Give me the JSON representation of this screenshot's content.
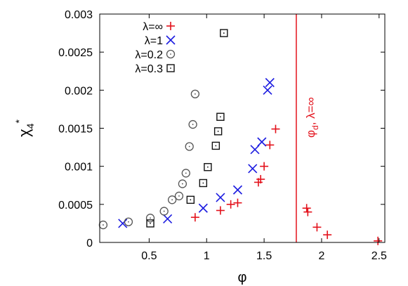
{
  "chart_data": {
    "type": "scatter",
    "title": "",
    "xlabel": "φ",
    "ylabel_main": "χ",
    "ylabel_sub": "4",
    "ylabel_sup": "*",
    "xlim": [
      0.07,
      2.55
    ],
    "ylim": [
      0,
      0.003
    ],
    "xticks": [
      0.5,
      1,
      1.5,
      2,
      2.5
    ],
    "xtick_labels": [
      "0.5",
      "1",
      "1.5",
      "2",
      "2.5"
    ],
    "yticks": [
      0,
      0.0005,
      0.001,
      0.0015,
      0.002,
      0.0025,
      0.003
    ],
    "ytick_labels": [
      "0",
      "0.0005",
      "0.001",
      "0.0015",
      "0.002",
      "0.0025",
      "0.003"
    ],
    "grid": false,
    "legend_position": "top-left",
    "series": [
      {
        "name": "λ=∞",
        "marker": "plus",
        "color": "#e3111b",
        "x": [
          0.9,
          1.12,
          1.21,
          1.27,
          1.45,
          1.47,
          1.5,
          1.55,
          1.6,
          1.87,
          1.88,
          1.96,
          2.05,
          2.49
        ],
        "y": [
          0.00033,
          0.00042,
          0.0005,
          0.00052,
          0.00079,
          0.00083,
          0.001,
          0.00128,
          0.00149,
          0.00045,
          0.0004,
          0.0002,
          0.0001,
          2e-05
        ]
      },
      {
        "name": "λ=1",
        "marker": "cross",
        "color": "#1c1ce0",
        "x": [
          0.27,
          0.66,
          0.97,
          1.12,
          1.27,
          1.4,
          1.42,
          1.48,
          1.53,
          1.55
        ],
        "y": [
          0.00025,
          0.00031,
          0.00045,
          0.00059,
          0.00069,
          0.00097,
          0.00122,
          0.00132,
          0.002,
          0.0021
        ],
        "values_hidden": false
      },
      {
        "name": "λ=0.2",
        "marker": "circle",
        "color": "#555555",
        "x": [
          0.1,
          0.32,
          0.51,
          0.63,
          0.7,
          0.76,
          0.79,
          0.82,
          0.85,
          0.88,
          0.9
        ],
        "y": [
          0.00023,
          0.00027,
          0.00032,
          0.00041,
          0.00056,
          0.00061,
          0.00077,
          0.00091,
          0.00126,
          0.00155,
          0.00195
        ]
      },
      {
        "name": "λ=0.3",
        "marker": "square",
        "color": "#111111",
        "x": [
          0.51,
          0.86,
          0.97,
          1.01,
          1.08,
          1.1,
          1.12,
          1.15
        ],
        "y": [
          0.00025,
          0.00056,
          0.00078,
          0.00099,
          0.00127,
          0.00146,
          0.00165,
          0.00275
        ]
      }
    ],
    "annotation": {
      "text_main": "φ",
      "text_sub": "d",
      "text_rest": ", λ=∞",
      "x": 1.78,
      "color": "#e3111b"
    }
  }
}
